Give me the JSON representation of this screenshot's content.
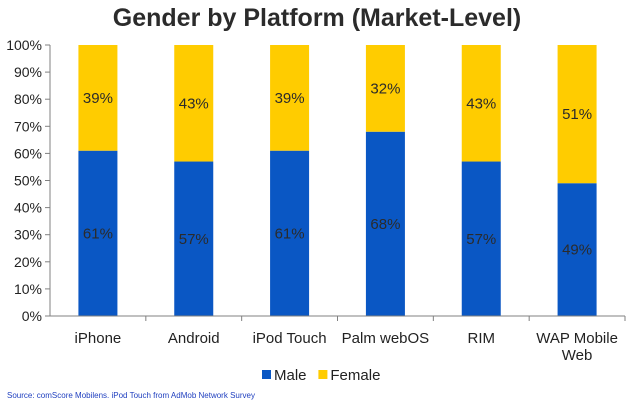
{
  "chart_data": {
    "type": "bar",
    "stacked": true,
    "title": "Gender by Platform (Market-Level)",
    "categories": [
      "iPhone",
      "Android",
      "iPod Touch",
      "Palm webOS",
      "RIM",
      "WAP Mobile Web"
    ],
    "series": [
      {
        "name": "Male",
        "values": [
          61,
          57,
          61,
          68,
          57,
          49
        ],
        "color": "#0a57c4"
      },
      {
        "name": "Female",
        "values": [
          39,
          43,
          39,
          32,
          43,
          51
        ],
        "color": "#ffcc00"
      }
    ],
    "ylim": [
      0,
      100
    ],
    "yticks": [
      "0%",
      "10%",
      "20%",
      "30%",
      "40%",
      "50%",
      "60%",
      "70%",
      "80%",
      "90%",
      "100%"
    ],
    "value_suffix": "%",
    "grid": false,
    "legend_position": "bottom"
  },
  "source": "Source: comScore Mobilens. iPod Touch from AdMob Network Survey"
}
